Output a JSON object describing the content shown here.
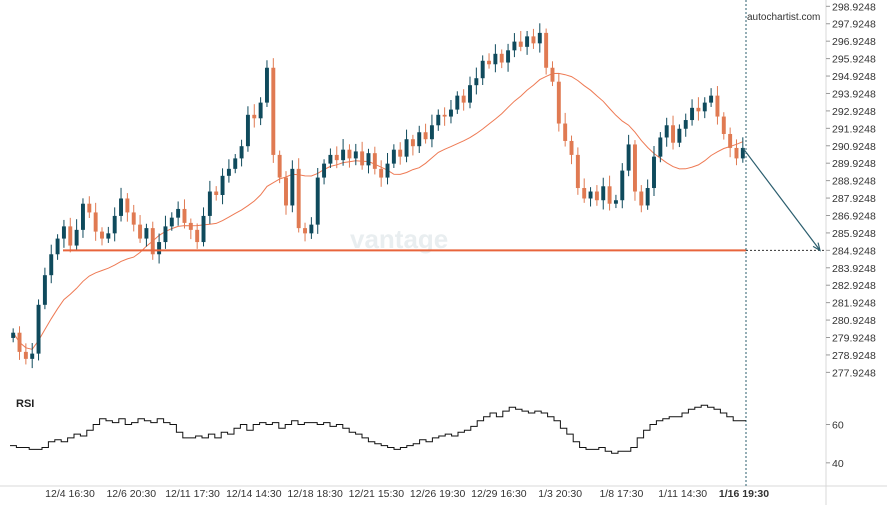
{
  "chart_data": {
    "type": "candlestick",
    "instrument_hint": "",
    "watermark_source": "autochartist.com",
    "brand_watermark": "vantage",
    "y_axis": {
      "ticks": [
        298.9248,
        297.9248,
        296.9248,
        295.9248,
        294.9248,
        293.9248,
        292.9248,
        291.9248,
        290.9248,
        289.9248,
        288.9248,
        287.9248,
        286.9248,
        285.9248,
        284.9248,
        283.9248,
        282.9248,
        281.9248,
        280.9248,
        279.9248,
        278.9248,
        277.9248
      ],
      "range": [
        277.2,
        299.0
      ]
    },
    "x_axis": {
      "tick_labels": [
        "12/4 16:30",
        "12/6 20:30",
        "12/11 17:30",
        "12/14 14:30",
        "12/18 18:30",
        "12/21 15:30",
        "12/26 19:30",
        "12/29 16:30",
        "1/3 20:30",
        "1/8 17:30",
        "1/11 14:30",
        "1/16 19:30"
      ],
      "highlight_label": "1/16 19:30"
    },
    "support_level": 284.9248,
    "forecast_target": 284.9248,
    "close_series": [
      280.2,
      279.1,
      278.7,
      279.0,
      281.8,
      283.5,
      284.7,
      285.6,
      286.3,
      285.2,
      286.1,
      287.6,
      287.1,
      286.0,
      285.6,
      285.9,
      286.9,
      287.9,
      287.1,
      286.4,
      285.6,
      286.2,
      284.7,
      285.4,
      286.3,
      286.8,
      287.3,
      286.5,
      286.1,
      285.4,
      286.9,
      288.3,
      288.1,
      289.2,
      289.6,
      290.2,
      290.9,
      292.7,
      292.5,
      293.4,
      295.4,
      290.4,
      289.1,
      287.5,
      289.6,
      286.2,
      285.9,
      286.4,
      289.1,
      289.9,
      290.4,
      290.1,
      290.7,
      290.2,
      290.6,
      289.8,
      290.5,
      289.6,
      289.1,
      289.9,
      290.7,
      290.3,
      291.3,
      290.9,
      291.7,
      291.3,
      292.1,
      292.7,
      292.6,
      293.0,
      293.8,
      293.4,
      294.4,
      294.8,
      295.8,
      295.6,
      296.2,
      295.7,
      296.4,
      296.9,
      296.6,
      297.2,
      296.8,
      297.4,
      295.4,
      294.6,
      292.2,
      291.2,
      290.4,
      288.5,
      287.9,
      288.3,
      287.8,
      288.6,
      287.6,
      287.8,
      289.5,
      291.0,
      288.3,
      287.5,
      288.5,
      290.3,
      291.4,
      292.1,
      291.1,
      291.9,
      292.4,
      293.1,
      292.9,
      293.4,
      293.8,
      292.6,
      291.6,
      290.8,
      290.2,
      290.8
    ],
    "moving_average": {
      "period_hint": "",
      "color": "#ee7a54"
    },
    "rsi": {
      "label": "RSI",
      "ticks": [
        60,
        40
      ],
      "range": [
        30,
        78
      ],
      "values": [
        49,
        48,
        48,
        47,
        47,
        48,
        51,
        52,
        51,
        53,
        55,
        54,
        57,
        60,
        63,
        62,
        61,
        63,
        60,
        61,
        63,
        62,
        61,
        63,
        61,
        60,
        56,
        53,
        53,
        54,
        53,
        55,
        53,
        56,
        55,
        58,
        60,
        57,
        60,
        61,
        60,
        61,
        58,
        60,
        62,
        60,
        61,
        61,
        60,
        61,
        59,
        60,
        58,
        56,
        55,
        53,
        51,
        50,
        49,
        48,
        47,
        48,
        49,
        50,
        52,
        51,
        53,
        54,
        55,
        54,
        56,
        57,
        59,
        62,
        64,
        66,
        64,
        67,
        69,
        68,
        67,
        66,
        67,
        66,
        64,
        62,
        58,
        55,
        51,
        48,
        47,
        47,
        48,
        46,
        45,
        46,
        46,
        48,
        53,
        57,
        60,
        62,
        63,
        64,
        64,
        66,
        68,
        69,
        70,
        69,
        68,
        66,
        64,
        62,
        62
      ]
    },
    "colors": {
      "bull": "#0f4a5c",
      "bear": "#e07a52",
      "support": "#e8643c",
      "forecast_arrow": "#2b5e6e",
      "rsi_line": "#111111",
      "axis_text": "#333333"
    }
  }
}
